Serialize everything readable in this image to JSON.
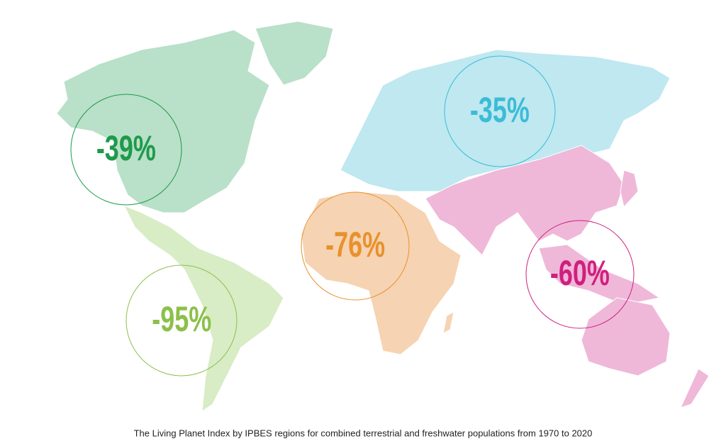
{
  "regions": [
    {
      "label": "-39%"
    },
    {
      "label": "-95%"
    },
    {
      "label": "-76%"
    },
    {
      "label": "-35%"
    },
    {
      "label": "-60%"
    }
  ],
  "caption": "The Living Planet Index by IPBES regions for combined terrestrial and freshwater populations from 1970 to 2020"
}
